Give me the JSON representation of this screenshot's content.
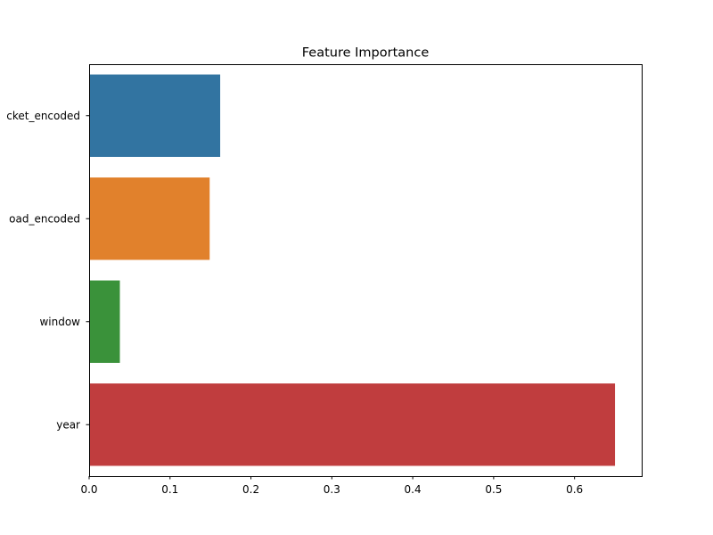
{
  "chart_data": {
    "type": "bar",
    "orientation": "horizontal",
    "title": "Feature Importance",
    "xlabel": "",
    "ylabel": "",
    "categories": [
      "cket_encoded",
      "oad_encoded",
      "window",
      "year"
    ],
    "values": [
      0.162,
      0.149,
      0.038,
      0.65
    ],
    "colors": [
      "#3274a1",
      "#e1812c",
      "#3a923a",
      "#c03d3e"
    ],
    "xlim": [
      0,
      0.683
    ],
    "xticks": [
      0.0,
      0.1,
      0.2,
      0.3,
      0.4,
      0.5,
      0.6
    ],
    "xtick_labels": [
      "0.0",
      "0.1",
      "0.2",
      "0.3",
      "0.4",
      "0.5",
      "0.6"
    ],
    "grid": false,
    "legend": "none"
  }
}
